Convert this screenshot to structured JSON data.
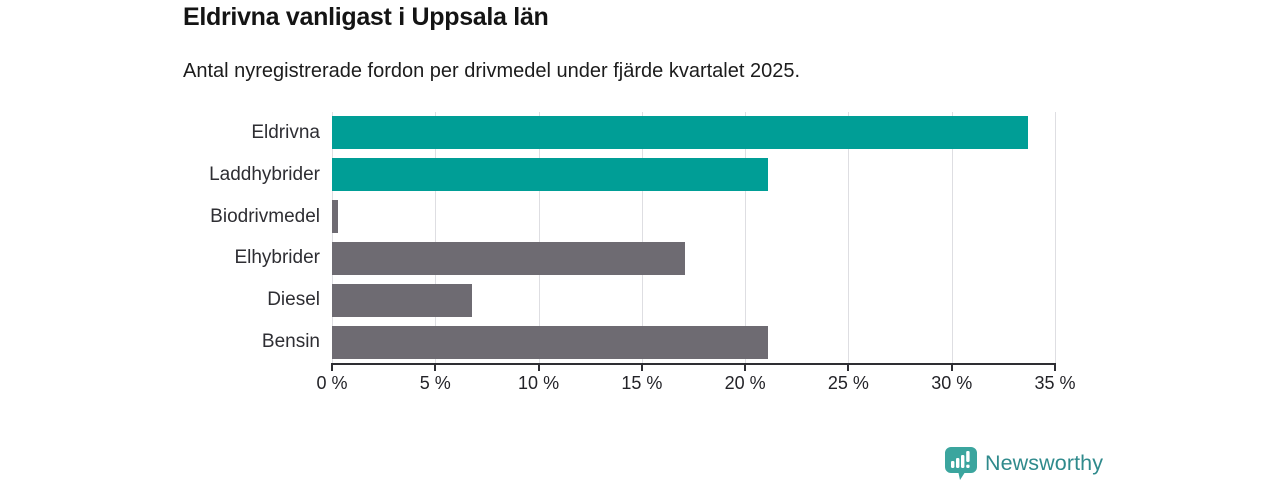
{
  "header": {
    "title": "Eldrivna vanligast i Uppsala län",
    "subtitle": "Antal nyregistrerade fordon per drivmedel under fjärde kvartalet 2025."
  },
  "chart_data": {
    "type": "bar",
    "orientation": "horizontal",
    "title": "Eldrivna vanligast i Uppsala län",
    "subtitle": "Antal nyregistrerade fordon per drivmedel under fjärde kvartalet 2025.",
    "categories": [
      "Eldrivna",
      "Laddhybrider",
      "Biodrivmedel",
      "Elhybrider",
      "Diesel",
      "Bensin"
    ],
    "values": [
      33.7,
      21.1,
      0.3,
      17.1,
      6.8,
      21.1
    ],
    "unit": "%",
    "bar_colors": [
      "#009e96",
      "#009e96",
      "#6e6b72",
      "#6e6b72",
      "#6e6b72",
      "#6e6b72"
    ],
    "accent_color": "#009e96",
    "muted_color": "#6e6b72",
    "xlabel": "",
    "ylabel": "",
    "xlim": [
      0,
      35
    ],
    "xticks": [
      0,
      5,
      10,
      15,
      20,
      25,
      30,
      35
    ],
    "xtick_labels": [
      "0 %",
      "5 %",
      "10 %",
      "15 %",
      "20 %",
      "25 %",
      "30 %",
      "35 %"
    ],
    "grid": true,
    "gridline_color": "#dedee2",
    "axis_color": "#2e2e33",
    "legend": false
  },
  "footer": {
    "brand": "Newsworthy",
    "brand_color": "#2f8a8c",
    "logo_icon": "bar-chart-bubble-icon",
    "logo_icon_color": "#3ba59e"
  }
}
